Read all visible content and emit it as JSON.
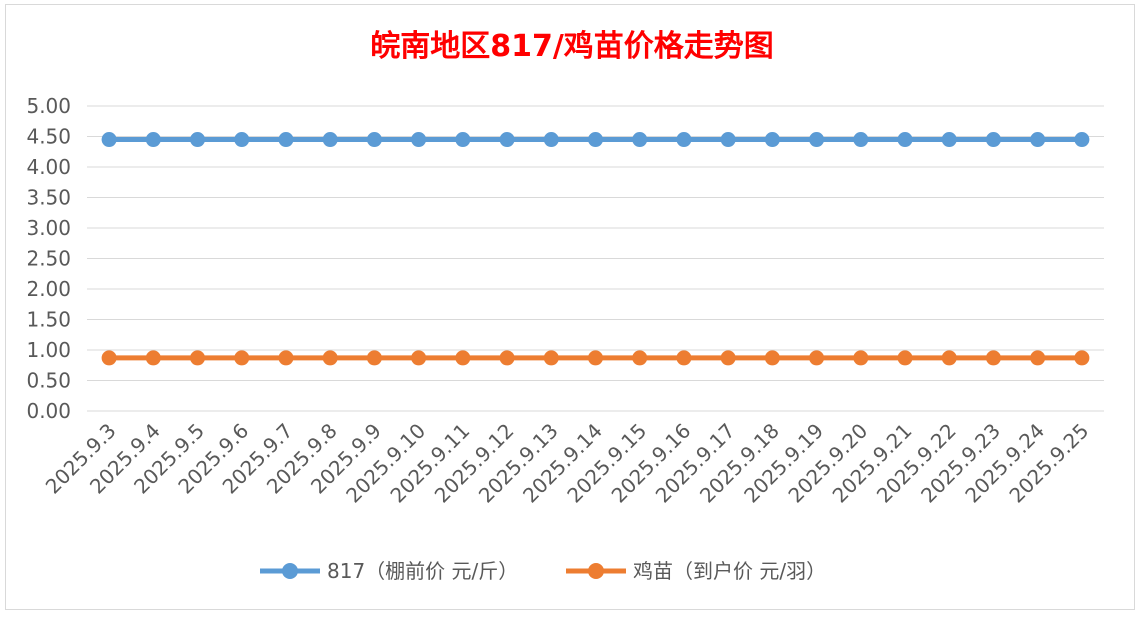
{
  "chart_data": {
    "type": "line",
    "title": "皖南地区817/鸡苗价格走势图",
    "xlabel": "",
    "ylabel": "",
    "categories": [
      "2025.9.3",
      "2025.9.4",
      "2025.9.5",
      "2025.9.6",
      "2025.9.7",
      "2025.9.8",
      "2025.9.9",
      "2025.9.10",
      "2025.9.11",
      "2025.9.12",
      "2025.9.13",
      "2025.9.14",
      "2025.9.15",
      "2025.9.16",
      "2025.9.17",
      "2025.9.18",
      "2025.9.19",
      "2025.9.20",
      "2025.9.21",
      "2025.9.22",
      "2025.9.23",
      "2025.9.24",
      "2025.9.25"
    ],
    "y_ticks": [
      "0.00",
      "0.50",
      "1.00",
      "1.50",
      "2.00",
      "2.50",
      "3.00",
      "3.50",
      "4.00",
      "4.50",
      "5.00"
    ],
    "ylim": [
      0,
      5
    ],
    "grid": true,
    "legend_position": "bottom",
    "series": [
      {
        "name": "817（棚前价 元/斤）",
        "color": "#5b9bd5",
        "values": [
          4.45,
          4.45,
          4.45,
          4.45,
          4.45,
          4.45,
          4.45,
          4.45,
          4.45,
          4.45,
          4.45,
          4.45,
          4.45,
          4.45,
          4.45,
          4.45,
          4.45,
          4.45,
          4.45,
          4.45,
          4.45,
          4.45,
          4.45
        ]
      },
      {
        "name": "鸡苗（到户价 元/羽）",
        "color": "#ed7d31",
        "values": [
          0.87,
          0.87,
          0.87,
          0.87,
          0.87,
          0.87,
          0.87,
          0.87,
          0.87,
          0.87,
          0.87,
          0.87,
          0.87,
          0.87,
          0.87,
          0.87,
          0.87,
          0.87,
          0.87,
          0.87,
          0.87,
          0.87,
          0.87
        ]
      }
    ]
  }
}
